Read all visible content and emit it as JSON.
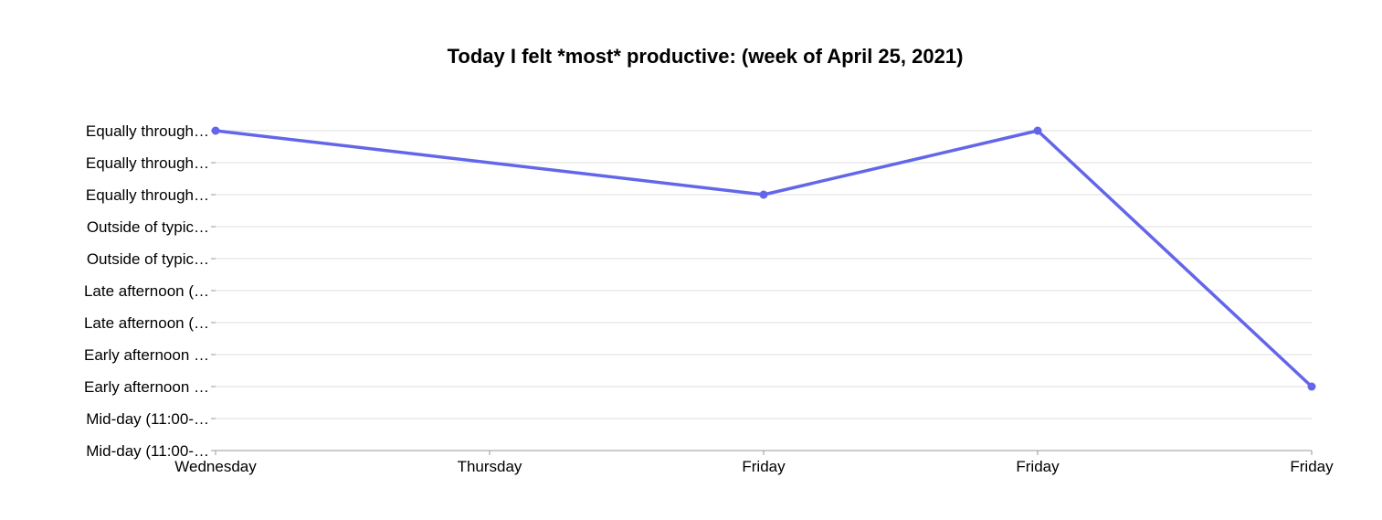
{
  "chart_data": {
    "type": "line",
    "title": "Today I felt *most* productive: (week of April 25, 2021)",
    "xlabel": "",
    "ylabel": "",
    "categories": [
      "Wednesday",
      "Thursday",
      "Friday",
      "Friday",
      "Friday"
    ],
    "y_categories": [
      "Mid-day (11:00-…",
      "Mid-day (11:00-…",
      "Early afternoon …",
      "Early afternoon …",
      "Late afternoon (…",
      "Late afternoon (…",
      "Outside of typic…",
      "Outside of typic…",
      "Equally through…",
      "Equally through…",
      "Equally through…"
    ],
    "series": [
      {
        "values": [
          10,
          null,
          8,
          10,
          2
        ],
        "color": "#6366e8"
      }
    ],
    "grid": true,
    "legend": "none"
  }
}
